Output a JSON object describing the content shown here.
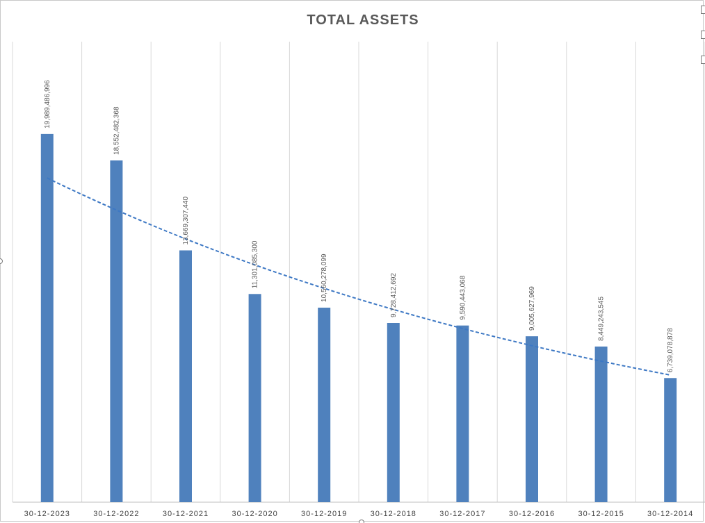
{
  "chart_data": {
    "type": "bar",
    "title": "TOTAL ASSETS",
    "xlabel": "",
    "ylabel": "",
    "categories": [
      "30-12-2023",
      "30-12-2022",
      "30-12-2021",
      "30-12-2020",
      "30-12-2019",
      "30-12-2018",
      "30-12-2017",
      "30-12-2016",
      "30-12-2015",
      "30-12-2014"
    ],
    "values": [
      19989486996,
      18552482368,
      13669307440,
      11301085300,
      10560278099,
      9728412692,
      9590443068,
      9005627969,
      8449243545,
      6739078878
    ],
    "value_labels": [
      "19,989,486,996",
      "18,552,482,368",
      "13,669,307,440",
      "11,301,085,300",
      "10,560,278,099",
      "9,728,412,692",
      "9,590,443,068",
      "9,005,627,969",
      "8,449,243,545",
      "6,739,078,878"
    ],
    "trendline": {
      "type": "exponential",
      "style": "dashed",
      "start_value": 17600000000,
      "end_value": 6900000000
    },
    "ylim": [
      0,
      25000000000
    ],
    "grid": "vertical",
    "legend": "none",
    "colors": {
      "bar": "#4f81bd",
      "trendline": "#3d78c4",
      "grid": "#d9d9d9",
      "axis": "#bfbfbf"
    }
  }
}
